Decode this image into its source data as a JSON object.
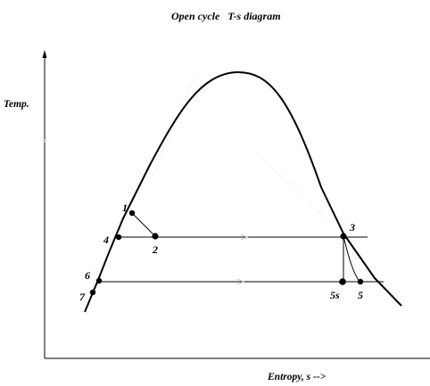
{
  "title": "Open cycle   T-s diagram",
  "y_axis_label": "Temp.",
  "x_axis_label": "Entropy, s -->",
  "points": {
    "p1": "1",
    "p2": "2",
    "p3": "3",
    "p4": "4",
    "p5s": "5s",
    "p5": "5",
    "p6": "6",
    "p7": "7"
  }
}
